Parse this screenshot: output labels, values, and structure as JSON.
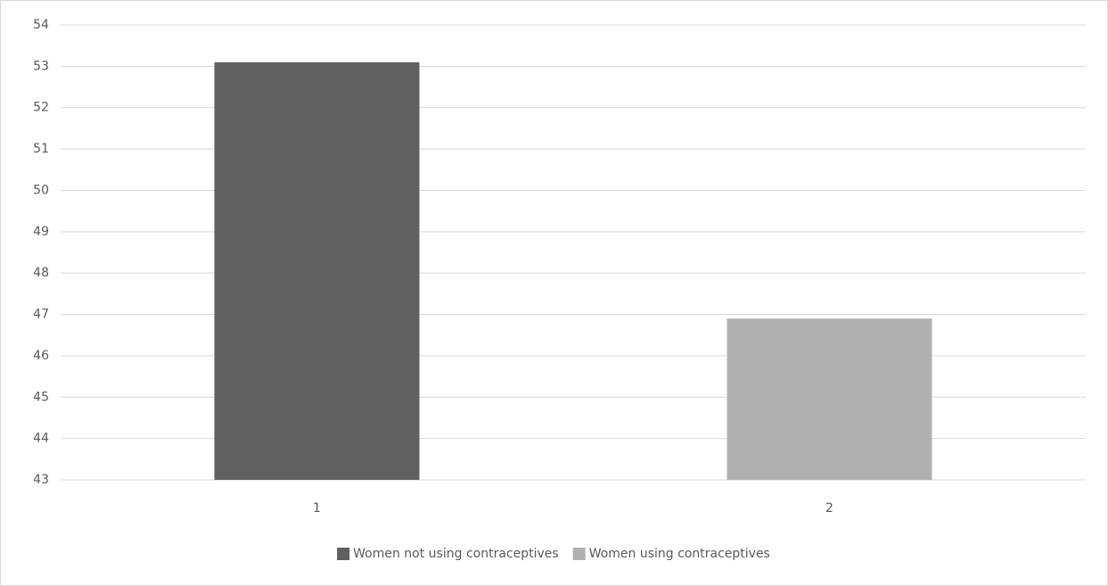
{
  "chart_data": {
    "type": "bar",
    "categories": [
      "1",
      "2"
    ],
    "series": [
      {
        "name": "Women not using contraceptives",
        "color": "#606060",
        "values": [
          53.1,
          null
        ]
      },
      {
        "name": "Women using contraceptives",
        "color": "#b0b0b0",
        "values": [
          null,
          46.9
        ]
      }
    ],
    "ylim": [
      43,
      54
    ],
    "yticks": [
      43,
      44,
      45,
      46,
      47,
      48,
      49,
      50,
      51,
      52,
      53,
      54
    ],
    "grid": true,
    "legend": "bottom"
  }
}
